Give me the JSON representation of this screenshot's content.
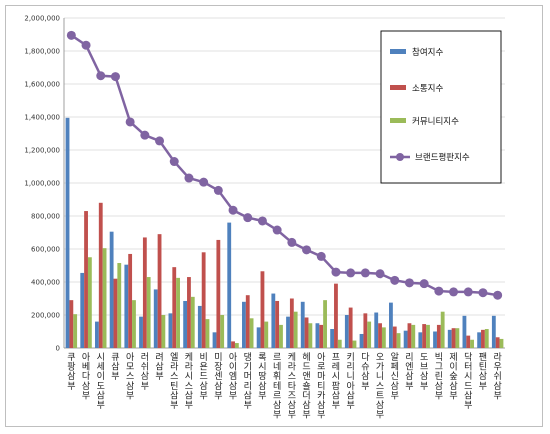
{
  "chart_data": {
    "type": "bar",
    "ylim": [
      0,
      2000000
    ],
    "yticks": [
      "0",
      "200,000",
      "400,000",
      "600,000",
      "800,000",
      "1,000,000",
      "1,200,000",
      "1,400,000",
      "1,600,000",
      "1,800,000",
      "2,000,000"
    ],
    "grid": true,
    "legend_position": "top-right",
    "categories": [
      "쿠팡 삼부",
      "아베다 삼부",
      "시세이도 삼부",
      "큐 삼부",
      "아모스 삼부",
      "러쉬 삼부",
      "려 삼부",
      "엘라스틴 삼부",
      "케라시스 삼부",
      "비욘드 삼부",
      "미장센 삼부",
      "아이엠 삼부",
      "댕기머리 삼부",
      "록시땅 삼부",
      "르네휘테르 삼부",
      "케라스타즈 삼부",
      "헤드앤숄더 삼부",
      "아로마티카 삼부",
      "프레시팝 삼부",
      "키리니아 삼부",
      "다슈 삼부",
      "오가니스트 삼부",
      "알페신 삼부",
      "리엔 삼부",
      "도브 삼부",
      "빅그린 삼부",
      "제이숲 삼부",
      "닥터시드 삼부",
      "팬틴 삼부",
      "라우쉬 삼부"
    ],
    "series": [
      {
        "name": "참여지수",
        "color": "#4f81bd",
        "type": "bar",
        "values": [
          1395000,
          455000,
          160000,
          705000,
          505000,
          190000,
          355000,
          210000,
          285000,
          255000,
          95000,
          760000,
          280000,
          125000,
          330000,
          190000,
          280000,
          150000,
          115000,
          200000,
          85000,
          215000,
          275000,
          105000,
          95000,
          100000,
          110000,
          195000,
          95000,
          195000
        ]
      },
      {
        "name": "소통지수",
        "color": "#c0504d",
        "type": "bar",
        "values": [
          290000,
          830000,
          880000,
          420000,
          570000,
          670000,
          690000,
          490000,
          430000,
          580000,
          655000,
          40000,
          320000,
          465000,
          285000,
          300000,
          185000,
          140000,
          390000,
          245000,
          210000,
          150000,
          130000,
          150000,
          145000,
          140000,
          120000,
          75000,
          110000,
          65000
        ]
      },
      {
        "name": "커뮤니티지수",
        "color": "#9bbb59",
        "type": "bar",
        "values": [
          205000,
          550000,
          605000,
          515000,
          290000,
          430000,
          200000,
          425000,
          310000,
          175000,
          200000,
          30000,
          180000,
          160000,
          140000,
          220000,
          150000,
          290000,
          50000,
          45000,
          160000,
          125000,
          90000,
          140000,
          140000,
          220000,
          120000,
          50000,
          115000,
          55000
        ]
      },
      {
        "name": "브랜드평판지수",
        "color": "#8064a2",
        "type": "line",
        "values": [
          1895000,
          1835000,
          1650000,
          1645000,
          1370000,
          1290000,
          1255000,
          1130000,
          1030000,
          1005000,
          955000,
          835000,
          790000,
          770000,
          715000,
          640000,
          595000,
          555000,
          460000,
          455000,
          455000,
          450000,
          410000,
          395000,
          390000,
          345000,
          340000,
          340000,
          335000,
          320000
        ]
      }
    ]
  }
}
